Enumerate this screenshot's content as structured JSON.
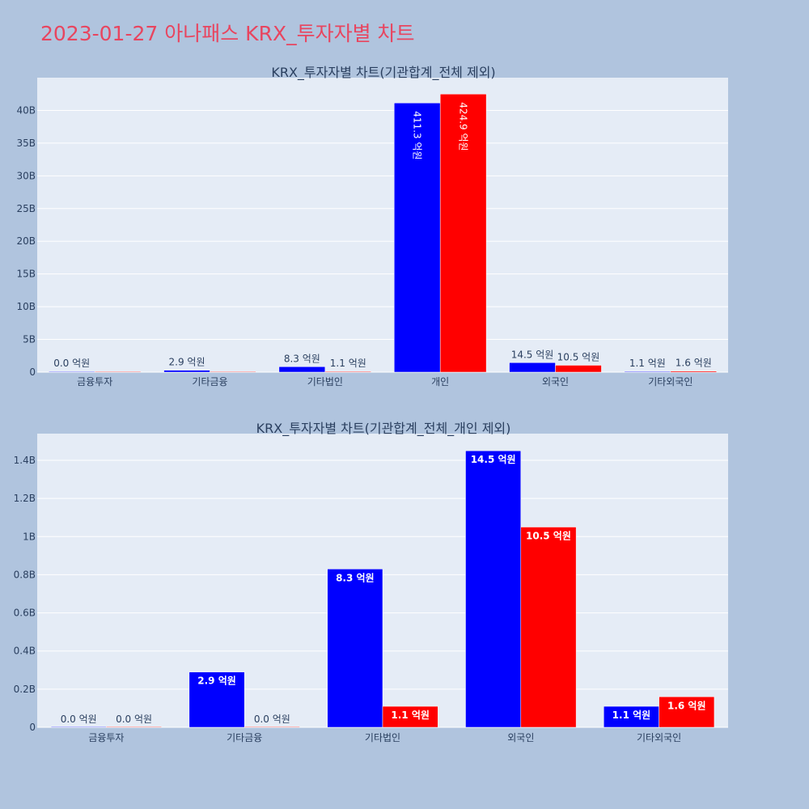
{
  "page": {
    "title": "2023-01-27 아나패스 KRX_투자자별 차트",
    "background": "#b0c4de",
    "title_color": "#e8455f"
  },
  "chart_data": [
    {
      "type": "bar",
      "title": "KRX_투자자별 차트(기관합계_전체 제외)",
      "categories": [
        "금융투자",
        "기타금융",
        "기타법인",
        "개인",
        "외국인",
        "기타외국인"
      ],
      "series": [
        {
          "color": "#0000ff",
          "values": [
            0,
            290000000,
            830000000,
            41130000000,
            1450000000,
            110000000
          ],
          "labels": [
            "0.0 억원",
            "2.9 억원",
            "8.3 억원",
            "411.3 억원",
            "14.5 억원",
            "1.1 억원"
          ]
        },
        {
          "color": "#ff0000",
          "values": [
            0,
            0,
            110000000,
            42490000000,
            1050000000,
            160000000
          ],
          "labels": [
            "",
            "",
            "1.1 억원",
            "424.9 억원",
            "10.5 억원",
            "1.6 억원"
          ]
        }
      ],
      "ylim": [
        0,
        45000000000
      ],
      "yticks": [
        0,
        5000000000,
        10000000000,
        15000000000,
        20000000000,
        25000000000,
        30000000000,
        35000000000,
        40000000000
      ],
      "ytick_labels": [
        "0",
        "5B",
        "10B",
        "15B",
        "20B",
        "25B",
        "30B",
        "35B",
        "40B"
      ],
      "grid": true,
      "plot_bg": "#e5ecf6"
    },
    {
      "type": "bar",
      "title": "KRX_투자자별 차트(기관합계_전체_개인 제외)",
      "categories": [
        "금융투자",
        "기타금융",
        "기타법인",
        "외국인",
        "기타외국인"
      ],
      "series": [
        {
          "color": "#0000ff",
          "values": [
            0,
            290000000,
            830000000,
            1450000000,
            110000000
          ],
          "labels": [
            "0.0 억원",
            "2.9 억원",
            "8.3 억원",
            "14.5 억원",
            "1.1 억원"
          ]
        },
        {
          "color": "#ff0000",
          "values": [
            0,
            0,
            110000000,
            1050000000,
            160000000
          ],
          "labels": [
            "0.0 억원",
            "0.0 억원",
            "1.1 억원",
            "10.5 억원",
            "1.6 억원"
          ]
        }
      ],
      "ylim": [
        0,
        1540000000
      ],
      "yticks": [
        0,
        200000000,
        400000000,
        600000000,
        800000000,
        1000000000,
        1200000000,
        1400000000
      ],
      "ytick_labels": [
        "0",
        "0.2B",
        "0.4B",
        "0.6B",
        "0.8B",
        "1B",
        "1.2B",
        "1.4B"
      ],
      "grid": true,
      "plot_bg": "#e5ecf6"
    }
  ]
}
